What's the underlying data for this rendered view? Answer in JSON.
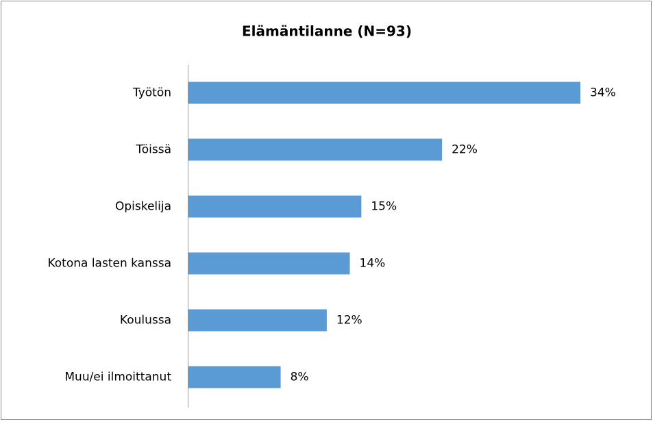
{
  "chart_data": {
    "type": "bar",
    "orientation": "horizontal",
    "title": "Elämäntilanne (N=93)",
    "categories": [
      "Työtön",
      "Töissä",
      "Opiskelija",
      "Kotona lasten kanssa",
      "Koulussa",
      "Muu/ei ilmoittanut"
    ],
    "values": [
      34,
      22,
      15,
      14,
      12,
      8
    ],
    "value_labels": [
      "34%",
      "22%",
      "15%",
      "14%",
      "12%",
      "8%"
    ],
    "color": "#5b9bd5"
  }
}
